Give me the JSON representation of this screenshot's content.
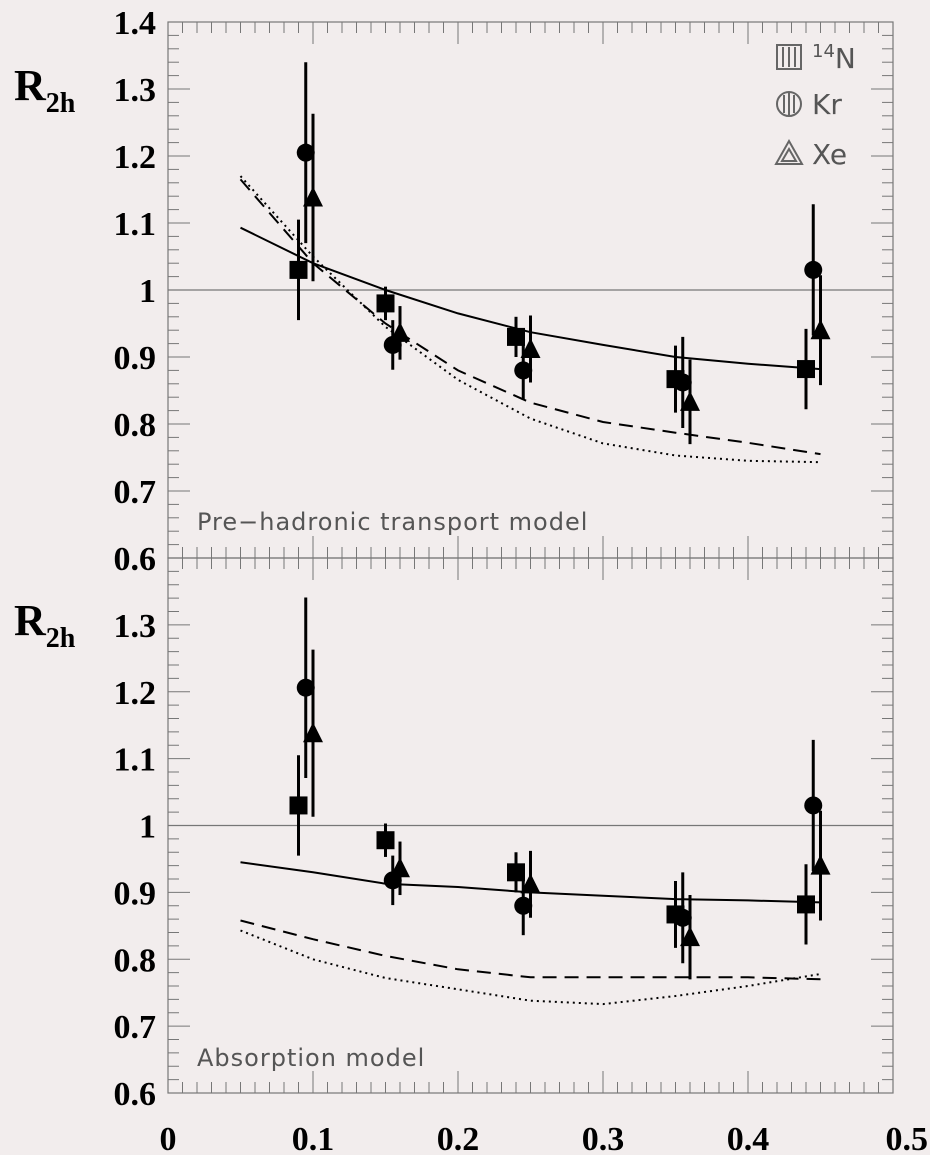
{
  "chart_data": [
    {
      "type": "scatter",
      "panel_label": "Pre−hadronic transport model",
      "ylabel": "R",
      "ylabel_sub": "2h",
      "ylim": [
        0.6,
        1.4
      ],
      "xlim": [
        0,
        0.5
      ],
      "yticks": [
        "0.6",
        "0.7",
        "0.8",
        "0.9",
        "1",
        "1.1",
        "1.2",
        "1.3",
        "1.4"
      ],
      "reference_line": 1.0,
      "series": [
        {
          "name": "14N",
          "marker": "square",
          "points": [
            {
              "x": 0.09,
              "y": 1.03,
              "err": 0.075
            },
            {
              "x": 0.15,
              "y": 0.98,
              "err": 0.025
            },
            {
              "x": 0.24,
              "y": 0.93,
              "err": 0.03
            },
            {
              "x": 0.35,
              "y": 0.867,
              "err": 0.05
            },
            {
              "x": 0.44,
              "y": 0.882,
              "err": 0.06
            }
          ]
        },
        {
          "name": "Kr",
          "marker": "circle",
          "points": [
            {
              "x": 0.095,
              "y": 1.205,
              "err": 0.135
            },
            {
              "x": 0.155,
              "y": 0.918,
              "err": 0.037
            },
            {
              "x": 0.245,
              "y": 0.88,
              "err": 0.044
            },
            {
              "x": 0.355,
              "y": 0.862,
              "err": 0.068
            },
            {
              "x": 0.445,
              "y": 1.03,
              "err": 0.098
            }
          ]
        },
        {
          "name": "Xe",
          "marker": "triangle",
          "points": [
            {
              "x": 0.1,
              "y": 1.138,
              "err": 0.125
            },
            {
              "x": 0.16,
              "y": 0.936,
              "err": 0.04
            },
            {
              "x": 0.25,
              "y": 0.912,
              "err": 0.05
            },
            {
              "x": 0.36,
              "y": 0.833,
              "err": 0.063
            },
            {
              "x": 0.45,
              "y": 0.94,
              "err": 0.082
            }
          ]
        }
      ],
      "curves": [
        {
          "style": "solid",
          "x": [
            0.05,
            0.1,
            0.15,
            0.2,
            0.25,
            0.3,
            0.35,
            0.4,
            0.45
          ],
          "y": [
            1.093,
            1.04,
            1.0,
            0.965,
            0.937,
            0.918,
            0.9,
            0.89,
            0.882
          ]
        },
        {
          "style": "dashed",
          "x": [
            0.05,
            0.1,
            0.15,
            0.2,
            0.25,
            0.3,
            0.35,
            0.4,
            0.45
          ],
          "y": [
            1.165,
            1.04,
            0.95,
            0.88,
            0.832,
            0.803,
            0.787,
            0.772,
            0.755
          ]
        },
        {
          "style": "dotted",
          "x": [
            0.05,
            0.1,
            0.15,
            0.2,
            0.25,
            0.3,
            0.35,
            0.4,
            0.45
          ],
          "y": [
            1.17,
            1.05,
            0.945,
            0.866,
            0.808,
            0.771,
            0.753,
            0.745,
            0.743
          ]
        }
      ]
    },
    {
      "type": "scatter",
      "panel_label": "Absorption model",
      "ylabel": "R",
      "ylabel_sub": "2h",
      "ylim": [
        0.6,
        1.4
      ],
      "xlim": [
        0,
        0.5
      ],
      "yticks": [
        "0.6",
        "0.7",
        "0.8",
        "0.9",
        "1",
        "1.1",
        "1.2",
        "1.3"
      ],
      "xticks": [
        "0",
        "0.1",
        "0.2",
        "0.3",
        "0.4",
        "0.5"
      ],
      "reference_line": 1.0,
      "series": [
        {
          "name": "14N",
          "marker": "square",
          "points": [
            {
              "x": 0.09,
              "y": 1.03,
              "err": 0.075
            },
            {
              "x": 0.15,
              "y": 0.978,
              "err": 0.025
            },
            {
              "x": 0.24,
              "y": 0.93,
              "err": 0.03
            },
            {
              "x": 0.35,
              "y": 0.867,
              "err": 0.05
            },
            {
              "x": 0.44,
              "y": 0.882,
              "err": 0.06
            }
          ]
        },
        {
          "name": "Kr",
          "marker": "circle",
          "points": [
            {
              "x": 0.095,
              "y": 1.206,
              "err": 0.135
            },
            {
              "x": 0.155,
              "y": 0.918,
              "err": 0.037
            },
            {
              "x": 0.245,
              "y": 0.88,
              "err": 0.044
            },
            {
              "x": 0.355,
              "y": 0.862,
              "err": 0.068
            },
            {
              "x": 0.445,
              "y": 1.03,
              "err": 0.098
            }
          ]
        },
        {
          "name": "Xe",
          "marker": "triangle",
          "points": [
            {
              "x": 0.1,
              "y": 1.138,
              "err": 0.125
            },
            {
              "x": 0.16,
              "y": 0.936,
              "err": 0.04
            },
            {
              "x": 0.25,
              "y": 0.912,
              "err": 0.05
            },
            {
              "x": 0.36,
              "y": 0.833,
              "err": 0.063
            },
            {
              "x": 0.45,
              "y": 0.94,
              "err": 0.082
            }
          ]
        }
      ],
      "curves": [
        {
          "style": "solid",
          "x": [
            0.05,
            0.1,
            0.15,
            0.2,
            0.25,
            0.3,
            0.35,
            0.4,
            0.45
          ],
          "y": [
            0.945,
            0.93,
            0.913,
            0.908,
            0.9,
            0.895,
            0.89,
            0.888,
            0.885
          ]
        },
        {
          "style": "dashed",
          "x": [
            0.05,
            0.1,
            0.15,
            0.2,
            0.25,
            0.3,
            0.35,
            0.4,
            0.45
          ],
          "y": [
            0.858,
            0.83,
            0.805,
            0.785,
            0.773,
            0.773,
            0.773,
            0.773,
            0.77
          ]
        },
        {
          "style": "dotted",
          "x": [
            0.05,
            0.1,
            0.15,
            0.2,
            0.25,
            0.3,
            0.35,
            0.4,
            0.45
          ],
          "y": [
            0.843,
            0.8,
            0.772,
            0.755,
            0.738,
            0.733,
            0.745,
            0.76,
            0.778
          ]
        }
      ]
    }
  ],
  "legend": {
    "items": [
      {
        "marker": "square",
        "mass": "14",
        "label": "N"
      },
      {
        "marker": "circle",
        "mass": "",
        "label": "Kr"
      },
      {
        "marker": "triangle",
        "mass": "",
        "label": "Xe"
      }
    ]
  }
}
